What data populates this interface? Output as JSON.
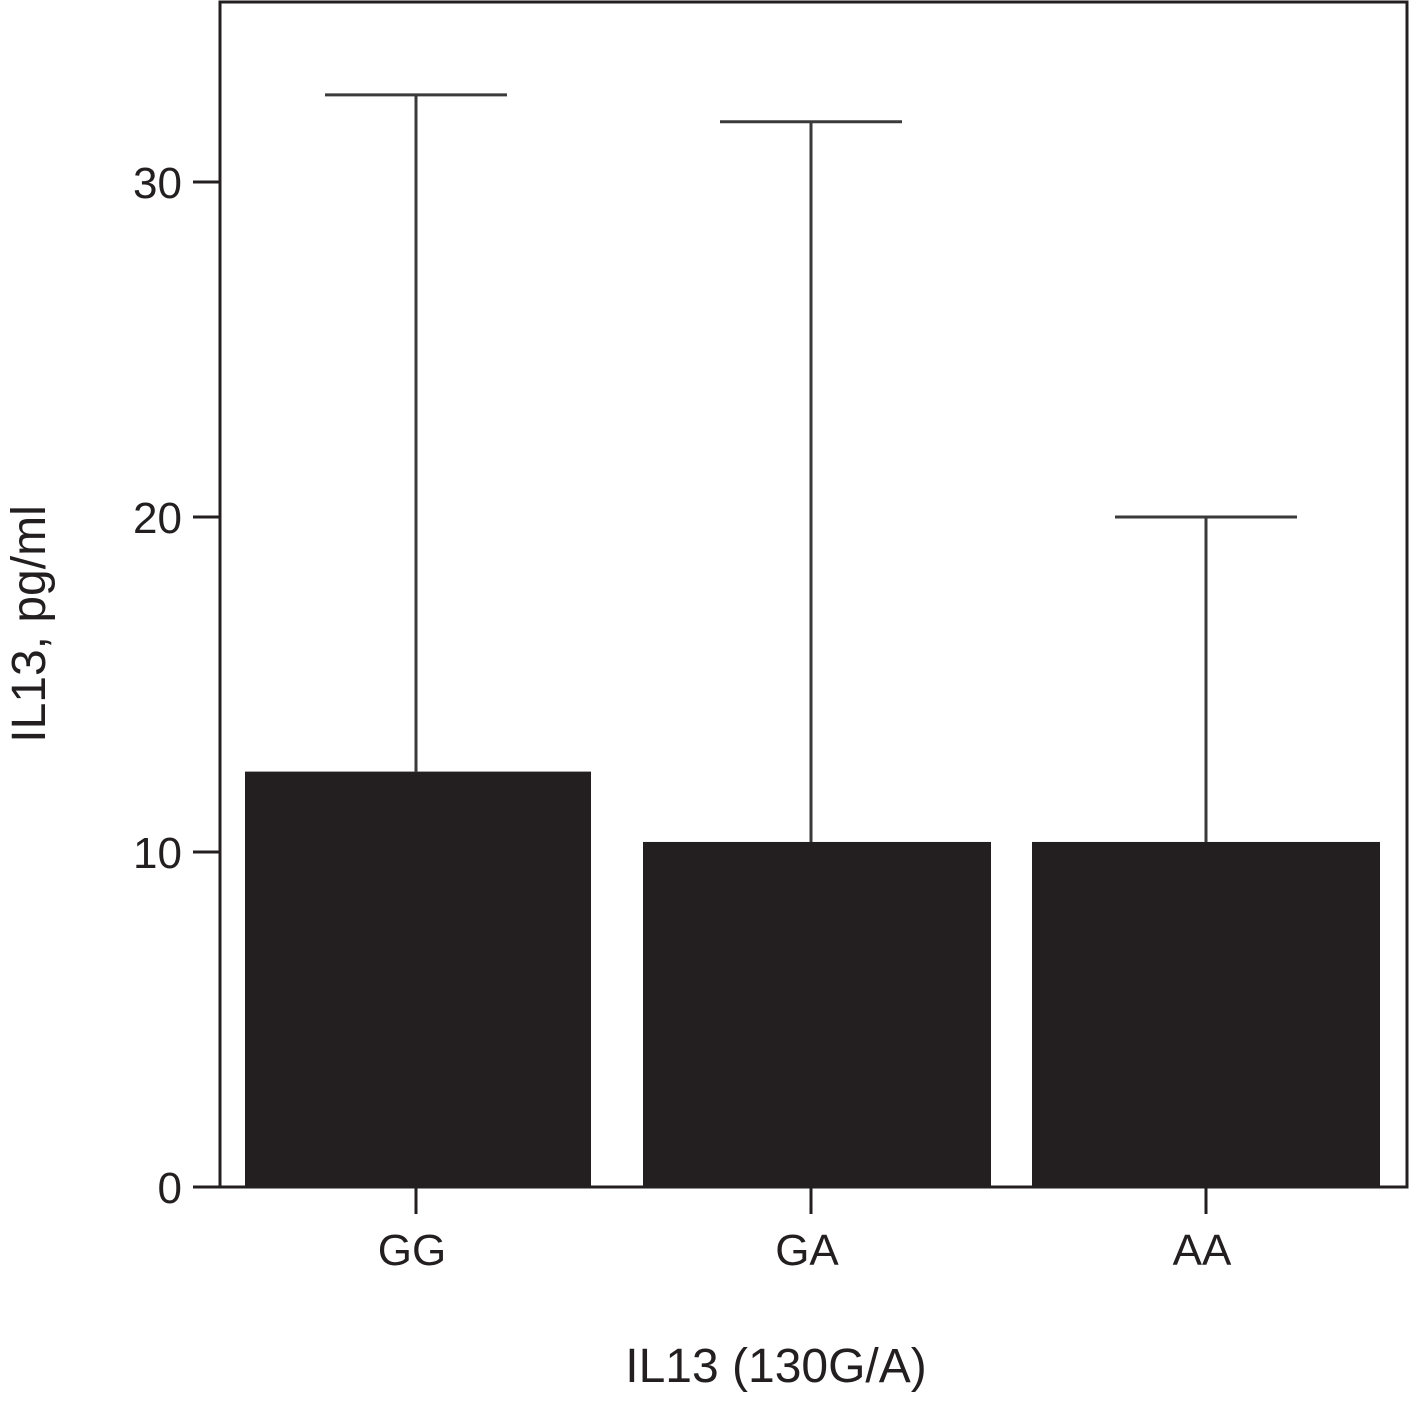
{
  "chart_data": {
    "type": "bar",
    "title": "",
    "xlabel": "IL13 (130G/A)",
    "ylabel": "IL13, pg/ml",
    "categories": [
      "GG",
      "GA",
      "AA"
    ],
    "values": [
      12.4,
      10.3,
      10.3
    ],
    "error_upper": [
      32.6,
      31.8,
      20.0
    ],
    "ylim": [
      0,
      35.5
    ],
    "yticks": [
      0,
      10,
      20,
      30
    ],
    "ytick_labels": [
      "0",
      "10",
      "20",
      "30"
    ],
    "grid": false,
    "legend": "none",
    "colors": {
      "bar": "#231f20",
      "axis": "#231f20",
      "error_bar": "#3a3a3a"
    }
  }
}
